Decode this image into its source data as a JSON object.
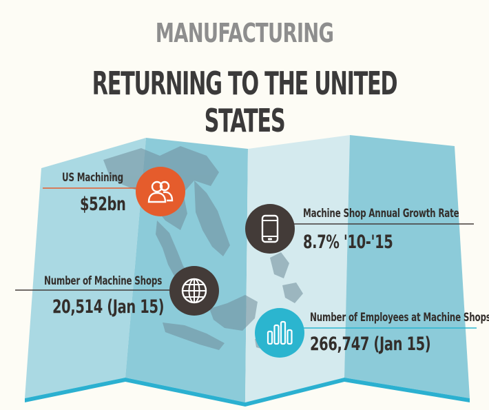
{
  "header": {
    "title": "MANUFACTURING",
    "subtitle": "RETURNING TO THE UNITED STATES"
  },
  "stats": {
    "us_machining": {
      "label": "US Machining",
      "value": "$52bn",
      "icon": "people-icon",
      "color": "#e55c2c"
    },
    "growth_rate": {
      "label": "Machine Shop Annual Growth Rate",
      "value": "8.7% '10-'15",
      "icon": "smartphone-icon",
      "color": "#433b38"
    },
    "machine_shops": {
      "label": "Number of Machine Shops",
      "value": "20,514 (Jan 15)",
      "icon": "globe-icon",
      "color": "#433b38"
    },
    "employees": {
      "label": "Number of Employees at Machine Shops",
      "value": "266,747 (Jan 15)",
      "icon": "bar-chart-icon",
      "color": "#2bb5cf"
    }
  }
}
